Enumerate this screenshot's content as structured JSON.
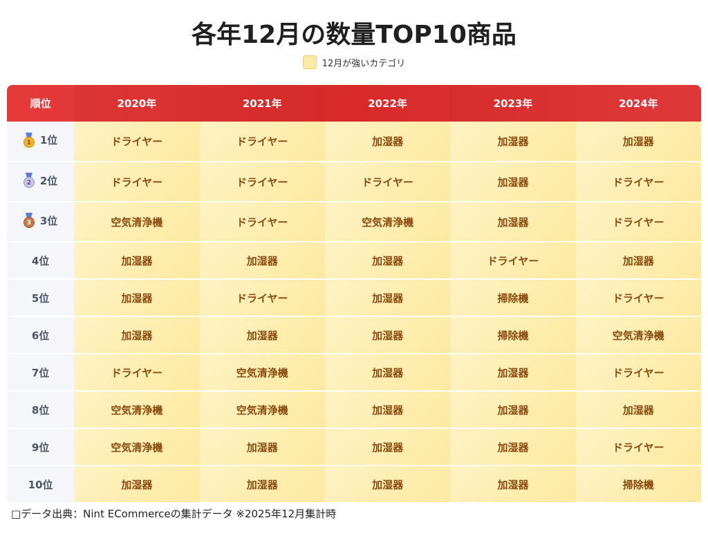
{
  "title": "各年12月の数量TOP10商品",
  "legend": {
    "label": "12月が強いカテゴリ",
    "swatch_color": "#fde9a8"
  },
  "table": {
    "header_rank": "順位",
    "years": [
      "2020年",
      "2021年",
      "2022年",
      "2023年",
      "2024年"
    ],
    "rows": [
      {
        "rank": "1位",
        "medal": "gold",
        "medal_num": "1",
        "items": [
          "ドライヤー",
          "ドライヤー",
          "加湿器",
          "加湿器",
          "加湿器"
        ]
      },
      {
        "rank": "2位",
        "medal": "silver",
        "medal_num": "2",
        "items": [
          "ドライヤー",
          "ドライヤー",
          "ドライヤー",
          "加湿器",
          "ドライヤー"
        ]
      },
      {
        "rank": "3位",
        "medal": "bronze",
        "medal_num": "3",
        "items": [
          "空気清浄機",
          "ドライヤー",
          "空気清浄機",
          "加湿器",
          "ドライヤー"
        ]
      },
      {
        "rank": "4位",
        "items": [
          "加湿器",
          "加湿器",
          "加湿器",
          "ドライヤー",
          "加湿器"
        ]
      },
      {
        "rank": "5位",
        "items": [
          "加湿器",
          "ドライヤー",
          "加湿器",
          "掃除機",
          "ドライヤー"
        ]
      },
      {
        "rank": "6位",
        "items": [
          "加湿器",
          "加湿器",
          "加湿器",
          "掃除機",
          "空気清浄機"
        ]
      },
      {
        "rank": "7位",
        "items": [
          "ドライヤー",
          "空気清浄機",
          "加湿器",
          "加湿器",
          "ドライヤー"
        ]
      },
      {
        "rank": "8位",
        "items": [
          "空気清浄機",
          "空気清浄機",
          "加湿器",
          "加湿器",
          "加湿器"
        ]
      },
      {
        "rank": "9位",
        "items": [
          "空気清浄機",
          "加湿器",
          "加湿器",
          "加湿器",
          "ドライヤー"
        ]
      },
      {
        "rank": "10位",
        "items": [
          "加湿器",
          "加湿器",
          "加湿器",
          "加湿器",
          "掃除機"
        ]
      }
    ]
  },
  "footer": "□データ出典：Nint ECommerceの集計データ ※2025年12月集計時",
  "colors": {
    "header_red": "#e02b2b",
    "cell_yellow": "#fde9a0",
    "item_text": "#8a4b10",
    "rank_bg": "#f4f6f9"
  }
}
